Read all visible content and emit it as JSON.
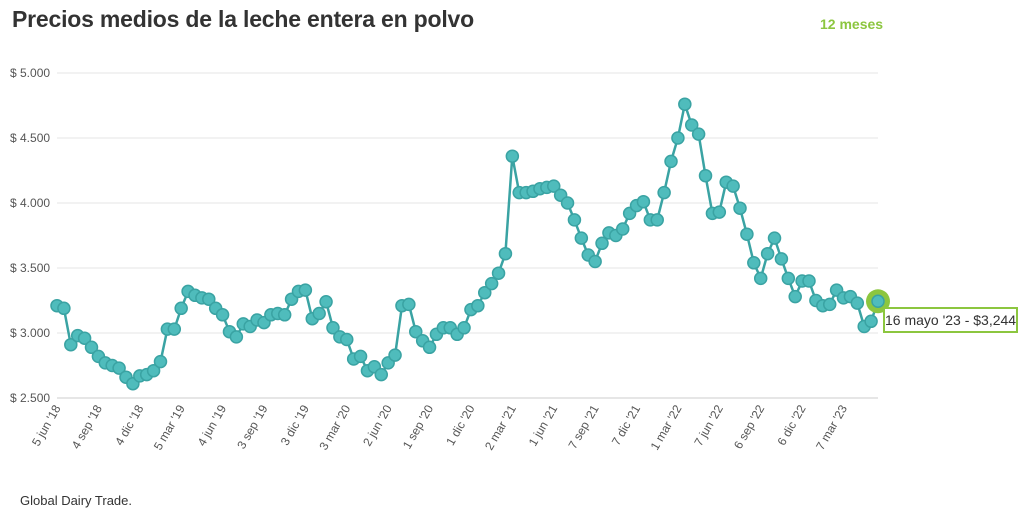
{
  "header": {
    "title": "Precios medios de la leche entera en polvo",
    "range_label": "12 meses"
  },
  "source": "Global Dairy Trade.",
  "tooltip": {
    "text": "16 mayo '23 - $3,244"
  },
  "colors": {
    "line": "#3aa3a3",
    "point": "#4fbcbc",
    "highlight": "#8cc63f",
    "grid": "#e6e6e6"
  },
  "chart_data": {
    "type": "line",
    "title": "Precios medios de la leche entera en polvo",
    "ylim": [
      2500,
      5000
    ],
    "yticks": [
      5000,
      4500,
      4000,
      3500,
      3000,
      2500
    ],
    "ytick_labels": [
      "$ 5.000",
      "$ 4.500",
      "$ 4.000",
      "$ 3.500",
      "$ 3.000",
      "$ 2.500"
    ],
    "xtick_labels": [
      "5 jun '18",
      "4 sep '18",
      "4 dic '18",
      "5 mar '19",
      "4 jun '19",
      "3 sep '19",
      "3 dic '19",
      "3 mar '20",
      "2 jun '20",
      "1 sep '20",
      "1 dic '20",
      "2 mar '21",
      "1 jun '21",
      "7 sep '21",
      "7 dic '21",
      "1 mar '22",
      "7 jun '22",
      "6 sep '22",
      "6 dic '22",
      "7 mar '23"
    ],
    "xtick_index": [
      0,
      6,
      12,
      18,
      24,
      30,
      36,
      42,
      48,
      54,
      60,
      66,
      72,
      78,
      84,
      90,
      96,
      102,
      108,
      114
    ],
    "grid": true,
    "legend": "none",
    "series": [
      {
        "values": [
          3210,
          3190,
          2910,
          2980,
          2960,
          2890,
          2820,
          2770,
          2750,
          2730,
          2660,
          2610,
          2670,
          2680,
          2710,
          2780,
          3030,
          3030,
          3190,
          3320,
          3290,
          3270,
          3260,
          3190,
          3140,
          3010,
          2970,
          3070,
          3050,
          3100,
          3080,
          3140,
          3150,
          3140,
          3260,
          3320,
          3330,
          3110,
          3150,
          3240,
          3040,
          2970,
          2950,
          2800,
          2820,
          2710,
          2740,
          2680,
          2770,
          2830,
          3210,
          3220,
          3010,
          2940,
          2890,
          2990,
          3040,
          3040,
          2990,
          3040,
          3180,
          3210,
          3310,
          3380,
          3460,
          3610,
          4360,
          4080,
          4080,
          4090,
          4110,
          4120,
          4130,
          4060,
          4000,
          3870,
          3730,
          3600,
          3550,
          3690,
          3770,
          3750,
          3800,
          3920,
          3980,
          4010,
          3870,
          3870,
          4080,
          4320,
          4500,
          4760,
          4600,
          4530,
          4210,
          3920,
          3930,
          4160,
          4130,
          3960,
          3760,
          3540,
          3420,
          3610,
          3730,
          3570,
          3420,
          3280,
          3400,
          3400,
          3250,
          3210,
          3220,
          3330,
          3270,
          3280,
          3230,
          3050,
          3090,
          3244
        ]
      }
    ]
  }
}
